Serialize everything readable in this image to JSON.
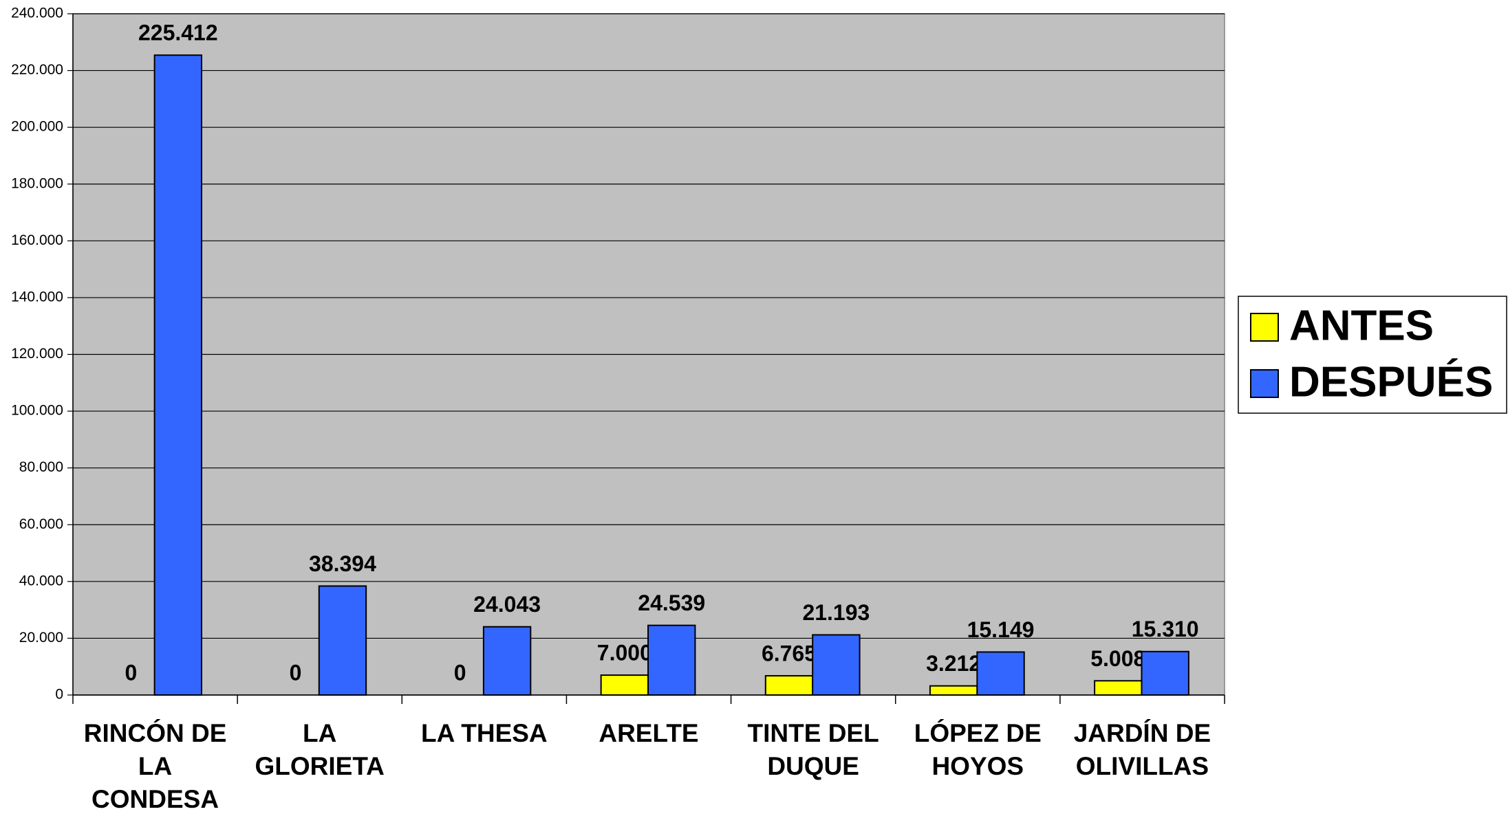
{
  "chart_data": {
    "type": "bar",
    "categories": [
      "RINCÓN DE LA CONDESA",
      "LA GLORIETA",
      "LA THESA",
      "ARELTE",
      "TINTE DEL DUQUE",
      "LÓPEZ DE HOYOS",
      "JARDÍN DE OLIVILLAS"
    ],
    "series": [
      {
        "name": "ANTES",
        "color": "#ffff00",
        "values": [
          0,
          0,
          0,
          7000,
          6765,
          3212,
          5008
        ],
        "value_labels": [
          "0",
          "0",
          "0",
          "7.000",
          "6.765",
          "3.212",
          "5.008"
        ]
      },
      {
        "name": "DESPUÉS",
        "color": "#3366ff",
        "values": [
          225412,
          38394,
          24043,
          24539,
          21193,
          15149,
          15310
        ],
        "value_labels": [
          "225.412",
          "38.394",
          "24.043",
          "24.539",
          "21.193",
          "15.149",
          "15.310"
        ]
      }
    ],
    "ylim": [
      0,
      240000
    ],
    "yticks": [
      {
        "value": 0,
        "label": "0"
      },
      {
        "value": 20000,
        "label": "20.000"
      },
      {
        "value": 40000,
        "label": "40.000"
      },
      {
        "value": 60000,
        "label": "60.000"
      },
      {
        "value": 80000,
        "label": "80.000"
      },
      {
        "value": 100000,
        "label": "100.000"
      },
      {
        "value": 120000,
        "label": "120.000"
      },
      {
        "value": 140000,
        "label": "140.000"
      },
      {
        "value": 160000,
        "label": "160.000"
      },
      {
        "value": 180000,
        "label": "180.000"
      },
      {
        "value": 200000,
        "label": "200.000"
      },
      {
        "value": 220000,
        "label": "220.000"
      },
      {
        "value": 240000,
        "label": "240.000"
      }
    ],
    "grid": true,
    "legend": "right"
  }
}
